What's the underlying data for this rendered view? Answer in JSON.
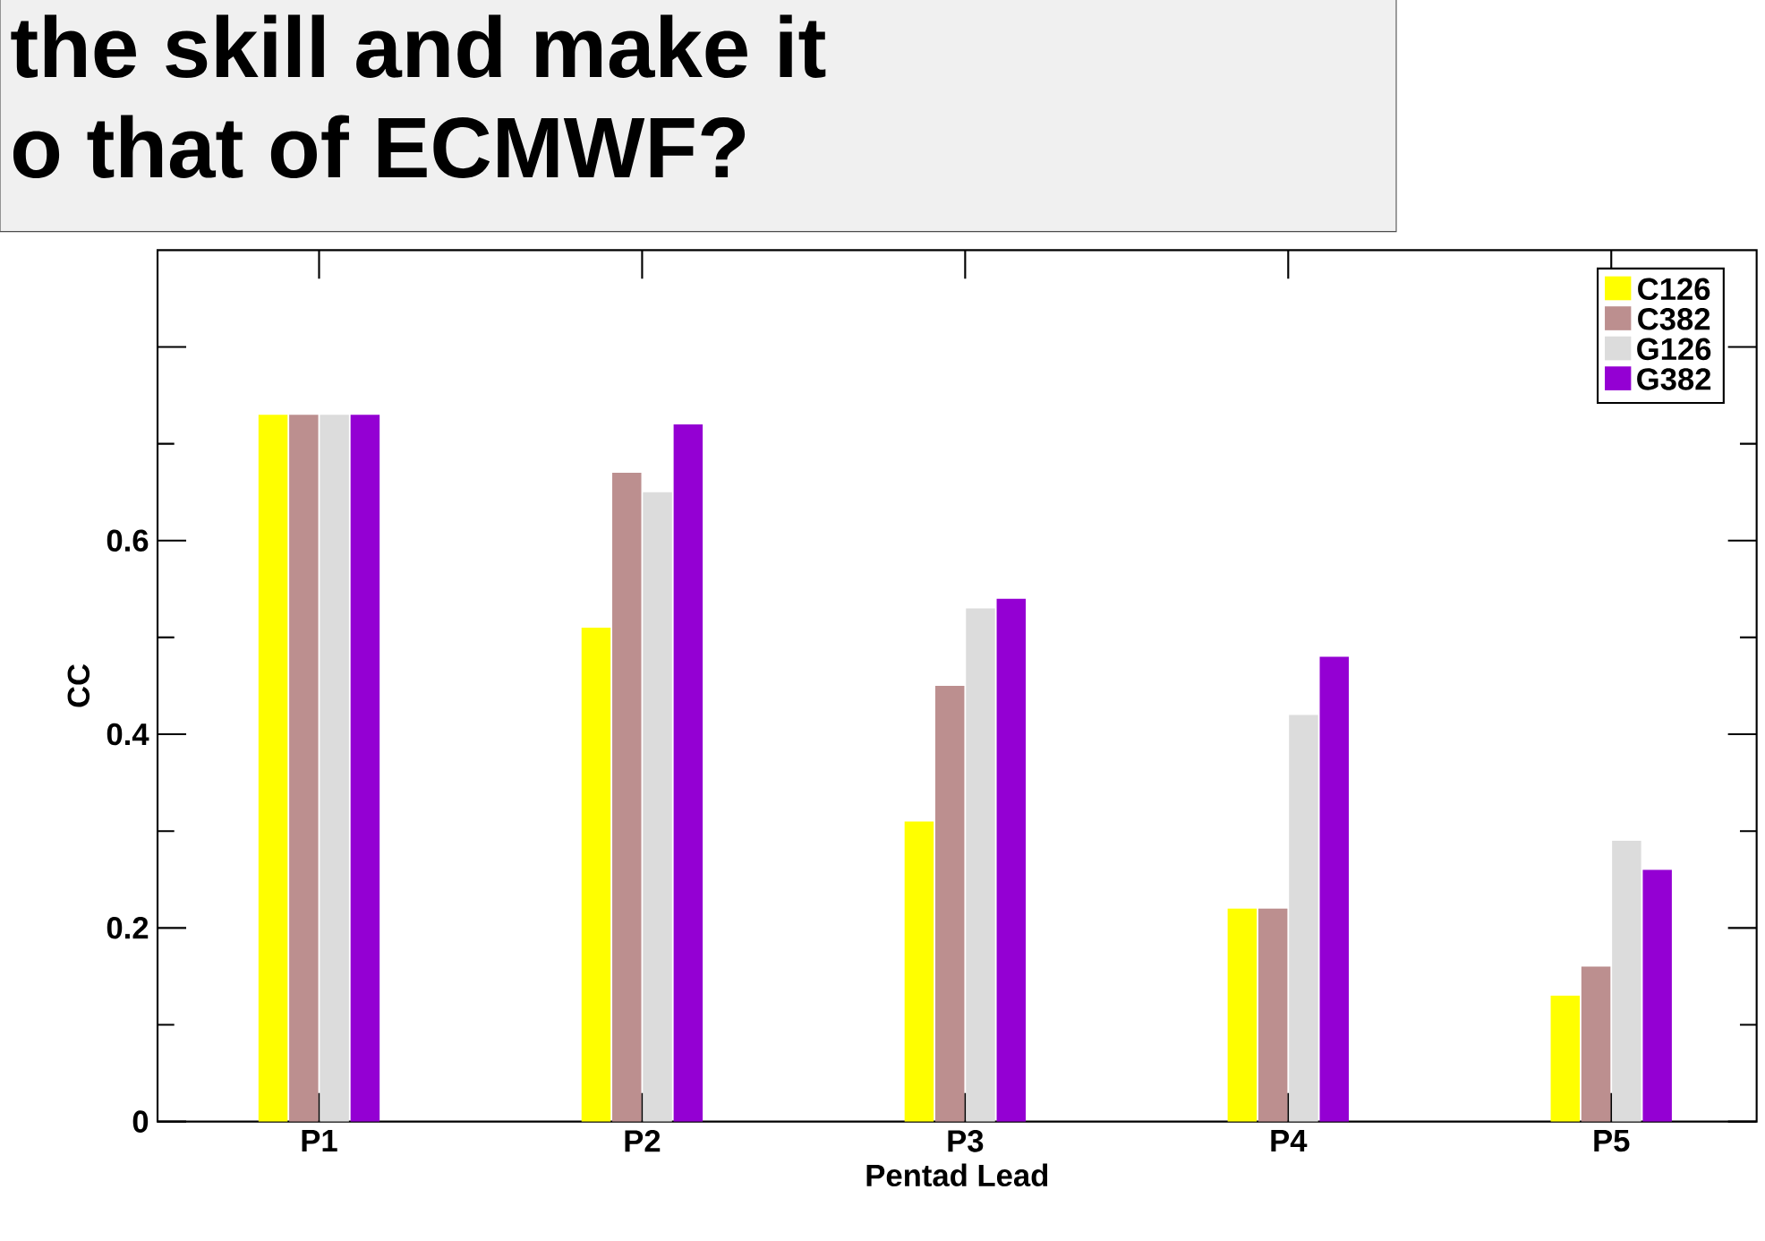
{
  "chart_data": {
    "type": "bar",
    "title": "the skill and make it",
    "subtitle": "o that of ECMWF?",
    "xlabel": "Pentad Lead",
    "ylabel": "CC",
    "categories": [
      "P1",
      "P2",
      "P3",
      "P4",
      "P5"
    ],
    "series": [
      {
        "name": "C126",
        "color": "#ffff00",
        "values": [
          0.73,
          0.51,
          0.31,
          0.22,
          0.13
        ]
      },
      {
        "name": "C382",
        "color": "#bc8f8f",
        "values": [
          0.73,
          0.67,
          0.45,
          0.22,
          0.16
        ]
      },
      {
        "name": "G126",
        "color": "#dcdcdc",
        "values": [
          0.73,
          0.65,
          0.53,
          0.42,
          0.29
        ]
      },
      {
        "name": "G382",
        "color": "#9400d3",
        "values": [
          0.73,
          0.72,
          0.54,
          0.48,
          0.26
        ]
      }
    ],
    "ylim": [
      0,
      0.9
    ],
    "yticks": [
      0,
      0.2,
      0.4,
      0.6,
      {
        "value": 0.8,
        "label": null
      }
    ],
    "legend": "top right",
    "grid": false
  }
}
